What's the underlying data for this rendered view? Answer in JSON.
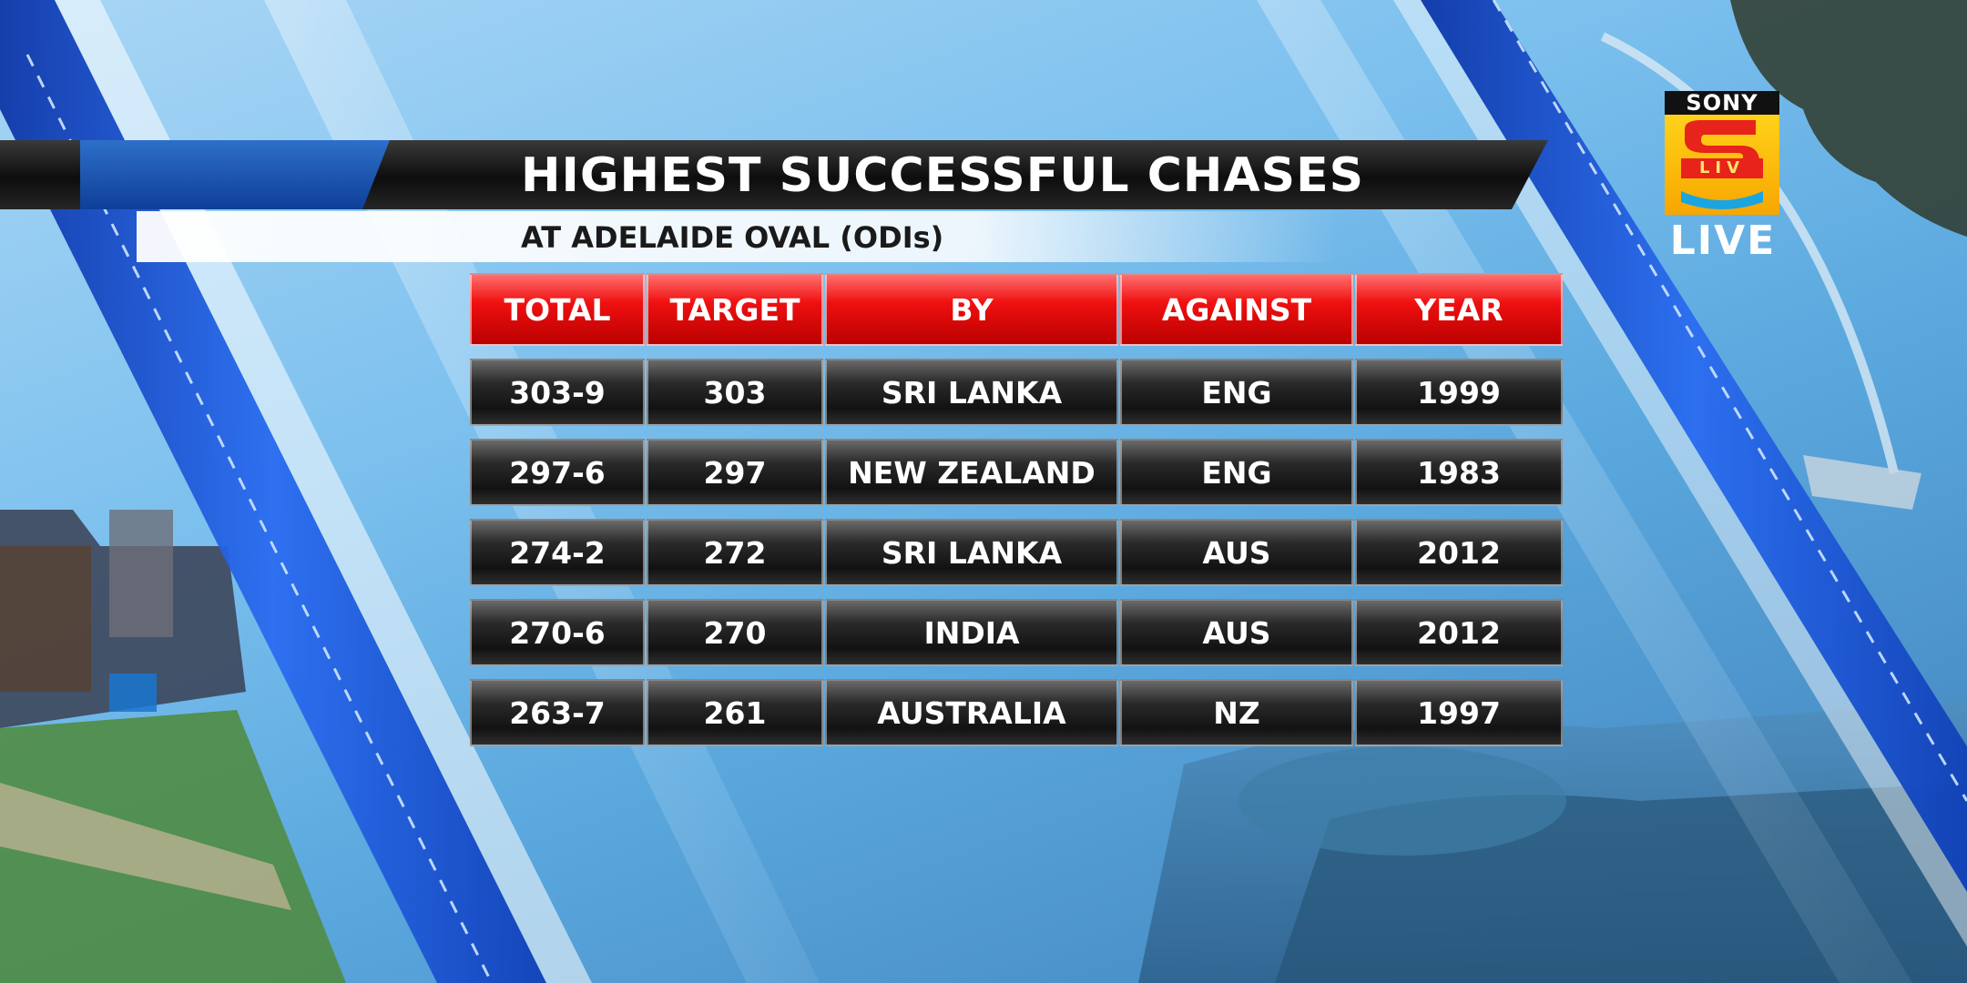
{
  "title": "HIGHEST SUCCESSFUL CHASES",
  "subtitle": "AT ADELAIDE OVAL (ODIs)",
  "table": {
    "headers": [
      "TOTAL",
      "TARGET",
      "BY",
      "AGAINST",
      "YEAR"
    ],
    "rows": [
      [
        "303-9",
        "303",
        "SRI LANKA",
        "ENG",
        "1999"
      ],
      [
        "297-6",
        "297",
        "NEW ZEALAND",
        "ENG",
        "1983"
      ],
      [
        "274-2",
        "272",
        "SRI LANKA",
        "AUS",
        "2012"
      ],
      [
        "270-6",
        "270",
        "INDIA",
        "AUS",
        "2012"
      ],
      [
        "263-7",
        "261",
        "AUSTRALIA",
        "NZ",
        "1997"
      ]
    ]
  },
  "broadcaster": {
    "brand": "SONY",
    "sub": "LIV",
    "status": "LIVE",
    "logo_icon": "sony-liv-logo"
  },
  "colors": {
    "header_red": "#e8141a",
    "row_dark": "#1c1c1c",
    "stripe_blue": "#1b4fd0",
    "background_sky": "#7cc0ee"
  }
}
